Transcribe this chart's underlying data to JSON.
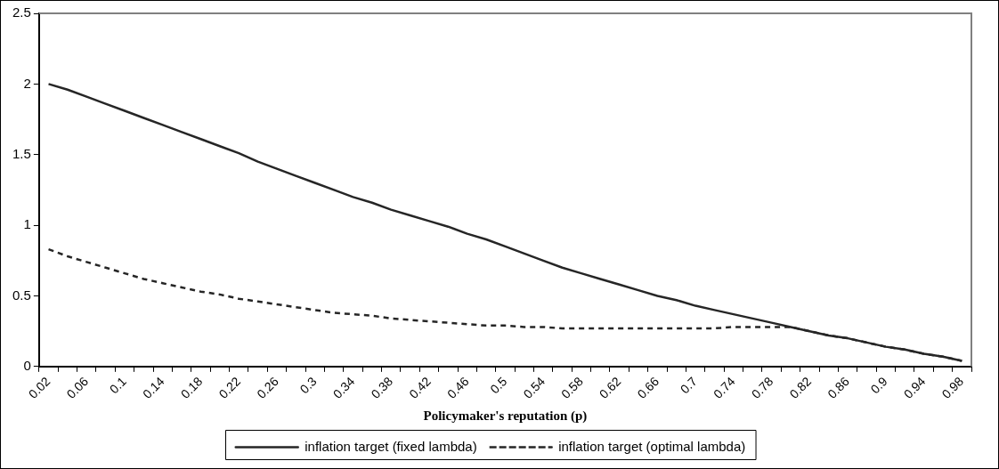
{
  "chart_data": {
    "type": "line",
    "xlabel": "Policymaker's reputation (p)",
    "categories": [
      "0.02",
      null,
      "0.06",
      null,
      "0.1",
      null,
      "0.14",
      null,
      "0.18",
      null,
      "0.22",
      null,
      "0.26",
      null,
      "0.3",
      null,
      "0.34",
      null,
      "0.38",
      null,
      "0.42",
      null,
      "0.46",
      null,
      "0.5",
      null,
      "0.54",
      null,
      "0.58",
      null,
      "0.62",
      null,
      "0.66",
      null,
      "0.7",
      null,
      "0.74",
      null,
      "0.78",
      null,
      "0.82",
      null,
      "0.86",
      null,
      "0.9",
      null,
      "0.94",
      null,
      "0.98"
    ],
    "series": [
      {
        "name": "inflation target (fixed lambda)",
        "color": "#262626",
        "line_style": "solid",
        "values": [
          2.0,
          1.96,
          1.91,
          1.86,
          1.81,
          1.76,
          1.71,
          1.66,
          1.61,
          1.56,
          1.51,
          1.45,
          1.4,
          1.35,
          1.3,
          1.25,
          1.2,
          1.16,
          1.11,
          1.07,
          1.03,
          0.99,
          0.94,
          0.9,
          0.85,
          0.8,
          0.75,
          0.7,
          0.66,
          0.62,
          0.58,
          0.54,
          0.5,
          0.47,
          0.43,
          0.4,
          0.37,
          0.34,
          0.31,
          0.28,
          0.25,
          0.22,
          0.2,
          0.17,
          0.14,
          0.12,
          0.09,
          0.07,
          0.04
        ]
      },
      {
        "name": "inflation target (optimal lambda)",
        "color": "#262626",
        "line_style": "dashed",
        "values": [
          0.83,
          0.78,
          0.74,
          0.7,
          0.66,
          0.62,
          0.59,
          0.56,
          0.53,
          0.51,
          0.48,
          0.46,
          0.44,
          0.42,
          0.4,
          0.38,
          0.37,
          0.36,
          0.34,
          0.33,
          0.32,
          0.31,
          0.3,
          0.29,
          0.29,
          0.28,
          0.28,
          0.27,
          0.27,
          0.27,
          0.27,
          0.27,
          0.27,
          0.27,
          0.27,
          0.27,
          0.28,
          0.28,
          0.28,
          0.28,
          0.25,
          0.22,
          0.2,
          0.17,
          0.14,
          0.12,
          0.09,
          0.07,
          0.04
        ]
      }
    ],
    "ylim": [
      0,
      2.5
    ],
    "yticks": [
      0,
      0.5,
      1,
      1.5,
      2,
      2.5
    ],
    "legend": "bottom"
  }
}
